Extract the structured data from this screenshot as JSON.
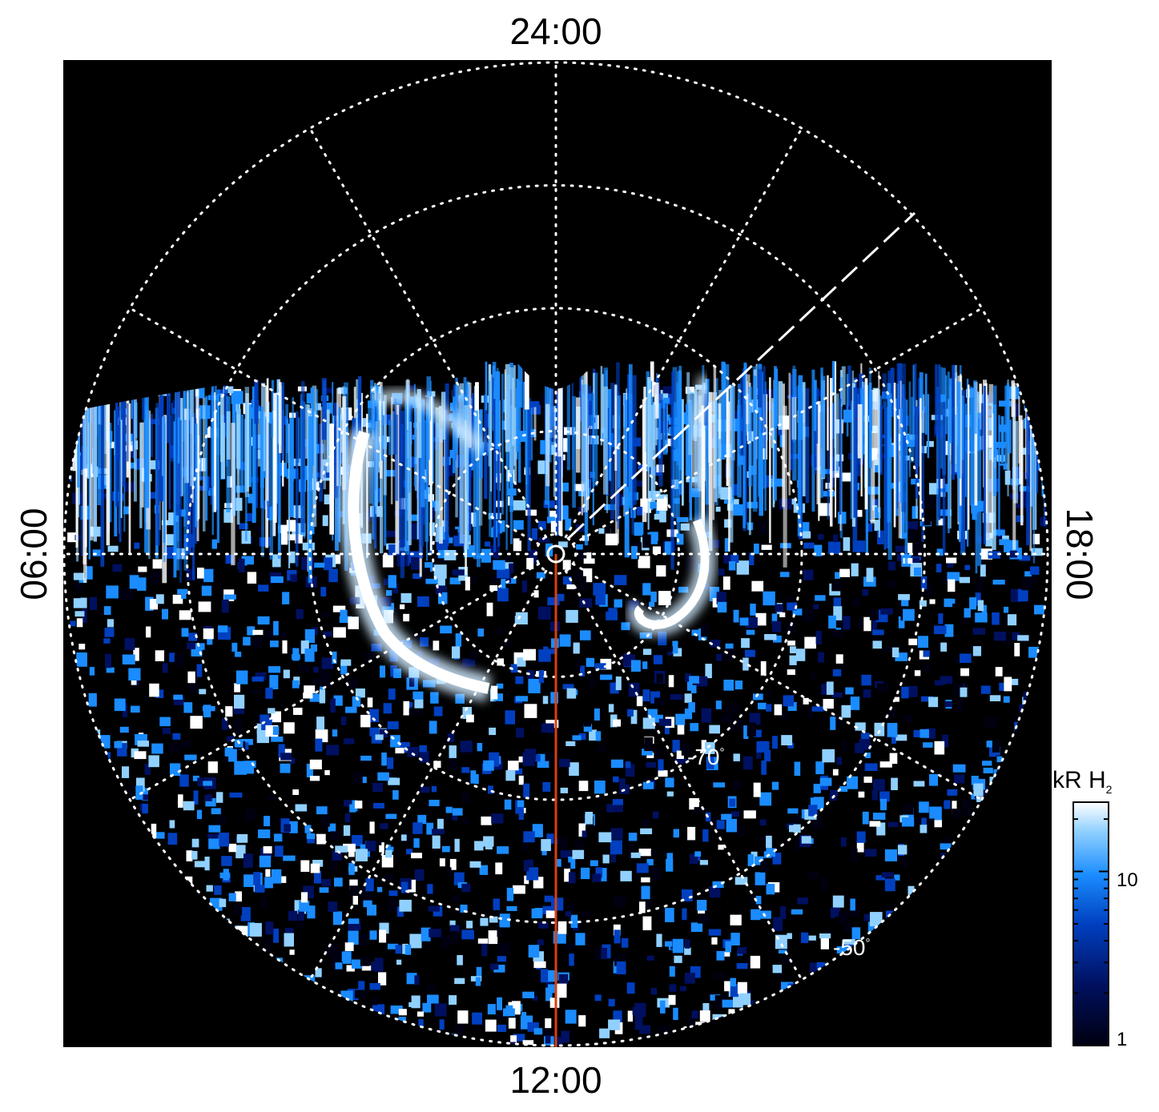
{
  "local_time_labels": {
    "top": "24:00",
    "bottom": "12:00",
    "left": "06:00",
    "right": "18:00"
  },
  "latitude_labels": {
    "inner": "-70",
    "outer": "-50",
    "degree": "°"
  },
  "colorbar": {
    "unit": "kR H",
    "unit_subscript": "2",
    "scale": "log",
    "range": [
      1,
      25
    ],
    "ticks": [
      "10",
      "1"
    ],
    "colors": [
      "#000010",
      "#001060",
      "#0040c0",
      "#1a8cff",
      "#90d0ff",
      "#ffffff"
    ]
  },
  "colors": {
    "background": "#000000",
    "grid": "#ffffff",
    "noon_meridian": "#d84010",
    "aurora": "#ffffff"
  }
}
